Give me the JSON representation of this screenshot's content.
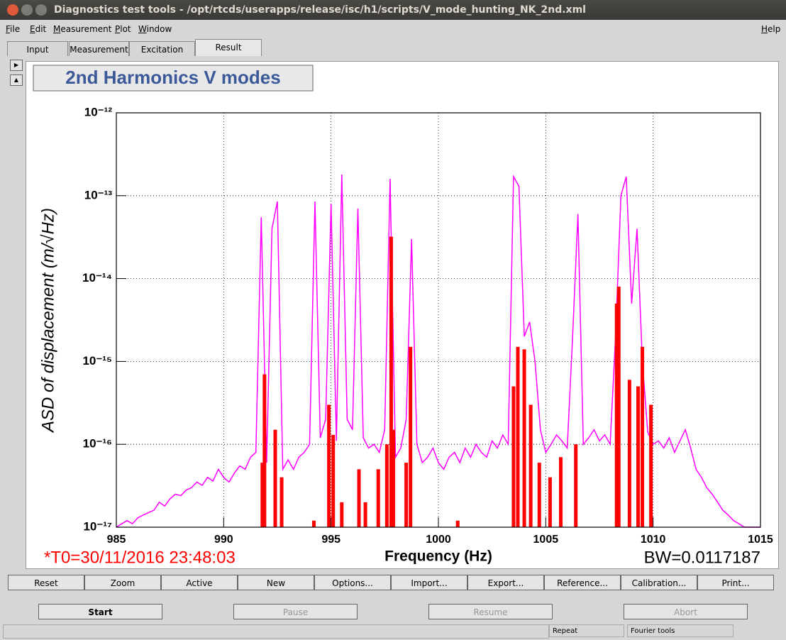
{
  "window": {
    "title": "Diagnostics test tools - /opt/rtcds/userapps/release/isc/h1/scripts/V_mode_hunting_NK_2nd.xml",
    "menu": [
      "File",
      "Edit",
      "Measurement",
      "Plot",
      "Window"
    ],
    "help": "Help",
    "tabs": [
      "Input",
      "Measurement",
      "Excitation",
      "Result"
    ],
    "plot_buttons": [
      "Reset",
      "Zoom",
      "Active",
      "New",
      "Options...",
      "Import...",
      "Export...",
      "Reference...",
      "Calibration...",
      "Print..."
    ],
    "control_buttons": [
      "Start",
      "Pause",
      "Resume",
      "Abort"
    ],
    "status": [
      "Repeat",
      "Fourier tools"
    ]
  },
  "chart_data": {
    "type": "line",
    "title": "2nd Harmonics V modes",
    "xlabel": "Frequency (Hz)",
    "ylabel": "ASD of displacement (m/√Hz)",
    "annotations": [
      "*T0=30/11/2016 23:48:03",
      "BW=0.0117187"
    ],
    "xlim": [
      985,
      1015
    ],
    "xticks": [
      985,
      990,
      995,
      1000,
      1005,
      1010,
      1015
    ],
    "ylim": [
      1e-17,
      1e-12
    ],
    "log_y": true,
    "grid": true,
    "yticks": [
      {
        "value": 1e-17,
        "label": "10⁻¹⁷"
      },
      {
        "value": 1e-16,
        "label": "10⁻¹⁶"
      },
      {
        "value": 1e-15,
        "label": "10⁻¹⁵"
      },
      {
        "value": 1e-14,
        "label": "10⁻¹⁴"
      },
      {
        "value": 1e-13,
        "label": "10⁻¹³"
      },
      {
        "value": 1e-12,
        "label": "10⁻¹²"
      }
    ],
    "series": [
      {
        "type": "line",
        "color": "#ff00ff",
        "x": [
          985,
          985.25,
          985.5,
          985.75,
          986,
          986.25,
          986.5,
          986.75,
          987,
          987.25,
          987.5,
          987.75,
          988,
          988.25,
          988.5,
          988.75,
          989,
          989.25,
          989.5,
          989.75,
          990,
          990.25,
          990.5,
          990.75,
          991,
          991.25,
          991.5,
          991.75,
          992,
          992.25,
          992.5,
          992.75,
          993,
          993.25,
          993.5,
          993.75,
          994,
          994.25,
          994.5,
          994.75,
          995,
          995.25,
          995.5,
          995.75,
          996,
          996.25,
          996.5,
          996.75,
          997,
          997.25,
          997.5,
          997.75,
          998,
          998.25,
          998.5,
          998.75,
          999,
          999.25,
          999.5,
          999.75,
          1000,
          1000.25,
          1000.5,
          1000.75,
          1001,
          1001.25,
          1001.5,
          1001.75,
          1002,
          1002.25,
          1002.5,
          1002.75,
          1003,
          1003.25,
          1003.5,
          1003.75,
          1004,
          1004.25,
          1004.5,
          1004.75,
          1005,
          1005.25,
          1005.5,
          1005.75,
          1006,
          1006.25,
          1006.5,
          1006.75,
          1007,
          1007.25,
          1007.5,
          1007.75,
          1008,
          1008.25,
          1008.5,
          1008.75,
          1009,
          1009.25,
          1009.5,
          1009.75,
          1010,
          1010.25,
          1010.5,
          1010.75,
          1011,
          1011.25,
          1011.5,
          1011.75,
          1012,
          1012.25,
          1012.5,
          1012.75,
          1013,
          1013.25,
          1013.5,
          1013.75,
          1014,
          1014.25,
          1014.5,
          1014.75,
          1015
        ],
        "values": [
          1e-17,
          1.1e-17,
          1.2e-17,
          1.1e-17,
          1.3e-17,
          1.4e-17,
          1.5e-17,
          1.6e-17,
          2e-17,
          1.8e-17,
          2.2e-17,
          2.5e-17,
          2.4e-17,
          2.8e-17,
          3e-17,
          3.5e-17,
          3.2e-17,
          4e-17,
          3.6e-17,
          5e-17,
          4e-17,
          3.5e-17,
          4.5e-17,
          5.5e-17,
          5e-17,
          7e-17,
          8e-17,
          5.5e-14,
          6e-17,
          4e-14,
          8.5e-14,
          5e-17,
          6.5e-17,
          5e-17,
          7e-17,
          8e-17,
          1e-16,
          8.5e-14,
          1.2e-16,
          2e-16,
          8e-14,
          1.1e-16,
          1.8e-13,
          2e-16,
          1.5e-16,
          7e-14,
          1.2e-16,
          9e-17,
          1e-16,
          8e-17,
          1.5e-16,
          1.6e-13,
          7e-17,
          9e-17,
          2e-16,
          3e-14,
          1e-16,
          6e-17,
          7e-17,
          9e-17,
          6e-17,
          5e-17,
          7e-17,
          8e-17,
          6e-17,
          9e-17,
          7e-17,
          1e-16,
          8e-17,
          7e-17,
          1.1e-16,
          9e-17,
          1.3e-16,
          1e-16,
          1.7e-13,
          1.3e-13,
          2e-15,
          3e-15,
          1e-15,
          1.5e-16,
          8e-17,
          1e-16,
          1.3e-16,
          1.1e-16,
          9e-17,
          2e-15,
          6e-14,
          1e-16,
          1.2e-16,
          1.5e-16,
          1.1e-16,
          1.3e-16,
          1e-16,
          2e-15,
          1e-13,
          1.7e-13,
          5e-15,
          4e-14,
          1e-15,
          1.4e-16,
          1e-16,
          1.1e-16,
          9e-17,
          1.2e-16,
          8e-17,
          1.1e-16,
          1.5e-16,
          9e-17,
          5e-17,
          4e-17,
          3e-17,
          2.5e-17,
          2e-17,
          1.6e-17,
          1.4e-17,
          1.2e-17,
          1.1e-17,
          1e-17,
          1e-17,
          1e-17,
          1e-17
        ]
      },
      {
        "type": "bar",
        "color": "#ff0000",
        "x": [
          991.8,
          991.9,
          992.4,
          992.7,
          994.2,
          994.9,
          995.1,
          995.5,
          996.3,
          996.6,
          997.2,
          997.6,
          997.8,
          997.9,
          998.5,
          998.7,
          1000.9,
          1003.5,
          1003.7,
          1004,
          1004.3,
          1004.7,
          1005.2,
          1005.7,
          1006.4,
          1008.3,
          1008.4,
          1008.9,
          1009.3,
          1009.5,
          1009.9
        ],
        "values": [
          6e-17,
          7e-16,
          1.5e-16,
          4e-17,
          1.2e-17,
          3e-16,
          1.3e-16,
          2e-17,
          5e-17,
          2e-17,
          5e-17,
          1e-16,
          3.2e-14,
          1.5e-16,
          6e-17,
          1.5e-15,
          1.2e-17,
          5e-16,
          1.5e-15,
          1.4e-15,
          3e-16,
          6e-17,
          4e-17,
          7e-17,
          1e-16,
          5e-15,
          8e-15,
          6e-16,
          5e-16,
          1.5e-15,
          3e-16
        ]
      }
    ]
  }
}
